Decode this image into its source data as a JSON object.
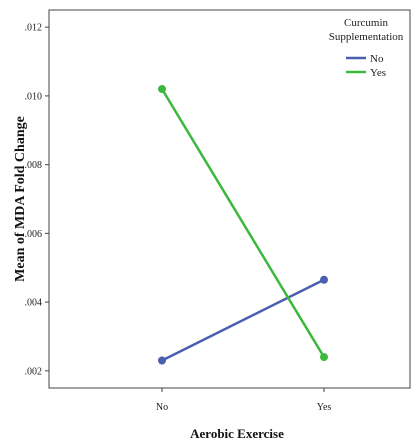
{
  "chart_data": {
    "type": "line",
    "title": "",
    "xlabel": "Aerobic Exercise",
    "ylabel": "Mean of MDA Fold Change",
    "categories": [
      "No",
      "Yes"
    ],
    "ylim": [
      0.0015,
      0.0125
    ],
    "yticks": [
      0.002,
      0.004,
      0.006,
      0.008,
      0.01,
      0.012
    ],
    "ytick_labels": [
      ".002",
      ".004",
      ".006",
      ".008",
      ".010",
      ".012"
    ],
    "grid": false,
    "legend": {
      "title_lines": [
        "Curcumin",
        "Supplementation"
      ],
      "placement": "top-right"
    },
    "series": [
      {
        "name": "No",
        "color": "#4a5fb0",
        "values": [
          0.0023,
          0.00465
        ]
      },
      {
        "name": "Yes",
        "color": "#3cb83c",
        "values": [
          0.0102,
          0.0024
        ]
      }
    ]
  }
}
